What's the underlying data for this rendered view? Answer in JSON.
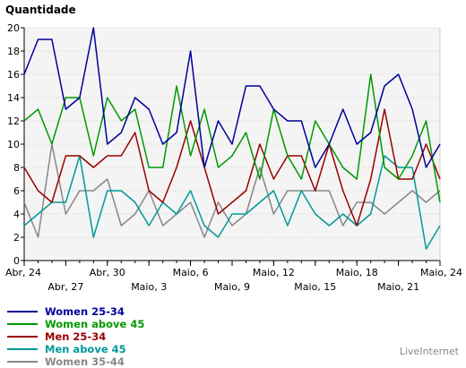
{
  "brand": "LiveInternet",
  "chart_data": {
    "type": "line",
    "ylabel": "Quantidade",
    "xlabel": "",
    "ylim": [
      0,
      20
    ],
    "yticks": [
      0,
      2,
      4,
      6,
      8,
      10,
      12,
      14,
      16,
      18,
      20
    ],
    "grid": true,
    "legend": "bottom-left",
    "x": [
      "Abr, 24",
      "Abr, 25",
      "Abr, 26",
      "Abr, 27",
      "Abr, 28",
      "Abr, 29",
      "Abr, 30",
      "Maio, 1",
      "Maio, 2",
      "Maio, 3",
      "Maio, 4",
      "Maio, 5",
      "Maio, 6",
      "Maio, 7",
      "Maio, 8",
      "Maio, 9",
      "Maio, 10",
      "Maio, 11",
      "Maio, 12",
      "Maio, 13",
      "Maio, 14",
      "Maio, 15",
      "Maio, 16",
      "Maio, 17",
      "Maio, 18",
      "Maio, 19",
      "Maio, 20",
      "Maio, 21",
      "Maio, 22",
      "Maio, 23",
      "Maio, 24"
    ],
    "x_tick_labels": [
      {
        "index": 0,
        "label": "Abr, 24",
        "row": 1
      },
      {
        "index": 3,
        "label": "Abr, 27",
        "row": 2
      },
      {
        "index": 6,
        "label": "Abr, 30",
        "row": 1
      },
      {
        "index": 9,
        "label": "Maio, 3",
        "row": 2
      },
      {
        "index": 12,
        "label": "Maio, 6",
        "row": 1
      },
      {
        "index": 15,
        "label": "Maio, 9",
        "row": 2
      },
      {
        "index": 18,
        "label": "Maio, 12",
        "row": 1
      },
      {
        "index": 21,
        "label": "Maio, 15",
        "row": 2
      },
      {
        "index": 24,
        "label": "Maio, 18",
        "row": 1
      },
      {
        "index": 27,
        "label": "Maio, 21",
        "row": 2
      },
      {
        "index": 30,
        "label": "Maio, 24",
        "row": 1
      }
    ],
    "series": [
      {
        "name": "Women 25-34",
        "color": "#000099",
        "values": [
          16,
          19,
          19,
          13,
          14,
          20,
          10,
          11,
          14,
          13,
          10,
          11,
          18,
          8,
          12,
          10,
          15,
          15,
          13,
          12,
          12,
          8,
          10,
          13,
          10,
          11,
          15,
          16,
          13,
          8,
          10
        ]
      },
      {
        "name": "Women above 45",
        "color": "#009900",
        "values": [
          12,
          13,
          10,
          14,
          14,
          9,
          14,
          12,
          13,
          8,
          8,
          15,
          9,
          13,
          8,
          9,
          11,
          7,
          13,
          9,
          7,
          12,
          10,
          8,
          7,
          16,
          8,
          7,
          9,
          12,
          5
        ]
      },
      {
        "name": "Men 25-34",
        "color": "#990000",
        "values": [
          8,
          6,
          5,
          9,
          9,
          8,
          9,
          9,
          11,
          6,
          5,
          8,
          12,
          8,
          4,
          5,
          6,
          10,
          7,
          9,
          9,
          6,
          10,
          6,
          3,
          7,
          13,
          7,
          7,
          10,
          7
        ]
      },
      {
        "name": "Men above 45",
        "color": "#009999",
        "values": [
          3,
          4,
          5,
          5,
          9,
          2,
          6,
          6,
          5,
          3,
          5,
          4,
          6,
          3,
          2,
          4,
          4,
          5,
          6,
          3,
          6,
          4,
          3,
          4,
          3,
          4,
          9,
          8,
          8,
          1,
          3
        ]
      },
      {
        "name": "Women 35-44",
        "color": "#888888",
        "values": [
          5,
          2,
          10,
          4,
          6,
          6,
          7,
          3,
          4,
          6,
          3,
          4,
          5,
          2,
          5,
          3,
          4,
          8,
          4,
          6,
          6,
          6,
          6,
          3,
          5,
          5,
          4,
          5,
          6,
          5,
          6
        ]
      }
    ]
  }
}
